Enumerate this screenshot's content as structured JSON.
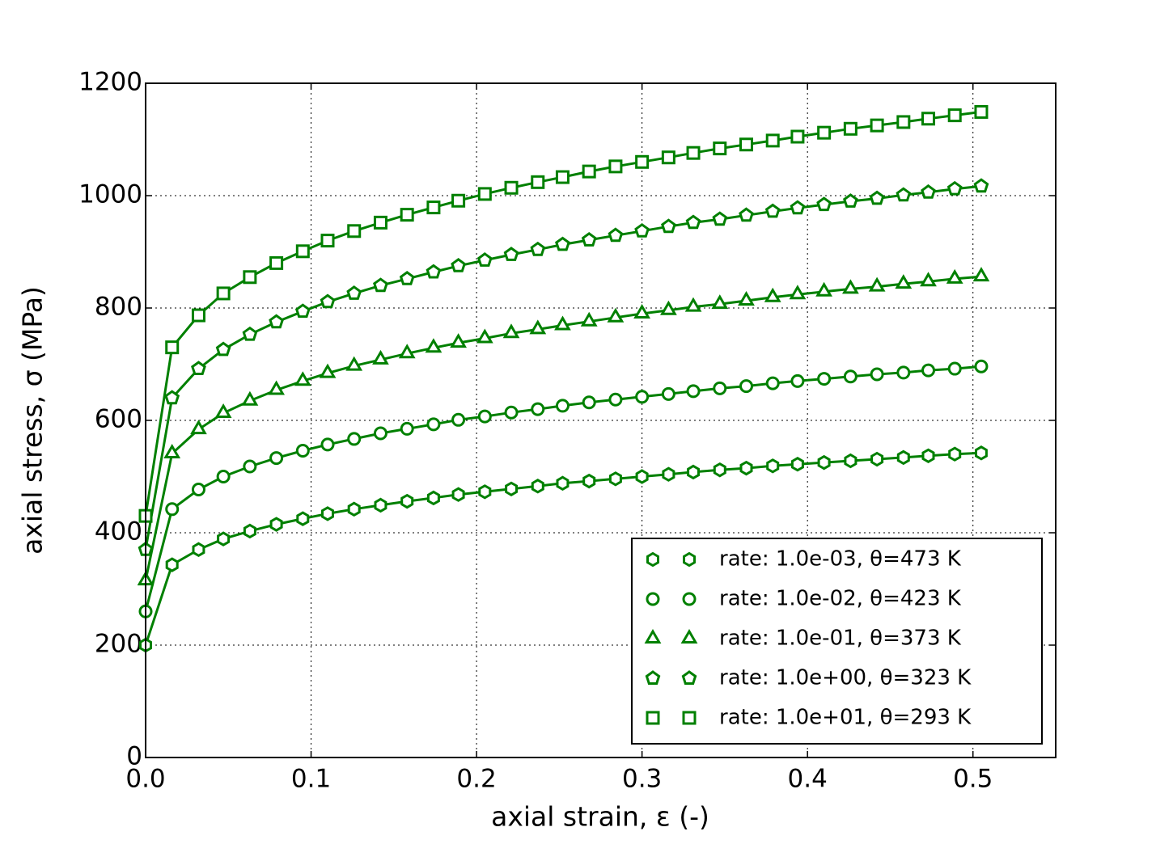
{
  "chart_data": {
    "type": "line",
    "xlabel": "axial strain, ε (-)",
    "ylabel": "axial stress, σ (MPa)",
    "x": [
      0,
      0.016,
      0.032,
      0.047,
      0.063,
      0.079,
      0.095,
      0.11,
      0.126,
      0.142,
      0.158,
      0.174,
      0.189,
      0.205,
      0.221,
      0.237,
      0.252,
      0.268,
      0.284,
      0.3,
      0.316,
      0.331,
      0.347,
      0.363,
      0.379,
      0.394,
      0.41,
      0.426,
      0.442,
      0.458,
      0.473,
      0.489,
      0.505
    ],
    "series": [
      {
        "name": "rate: 1.0e-03, θ=473 K",
        "color": "#008000",
        "marker": "hexagon",
        "values": [
          200,
          343,
          370,
          389,
          403,
          415,
          425,
          434,
          442,
          449,
          456,
          462,
          468,
          473,
          478,
          483,
          488,
          492,
          496,
          500,
          504,
          508,
          512,
          515,
          519,
          522,
          525,
          528,
          531,
          534,
          537,
          540,
          542
        ]
      },
      {
        "name": "rate: 1.0e-02, θ=423 K",
        "color": "#008000",
        "marker": "circle",
        "values": [
          260,
          442,
          477,
          500,
          518,
          533,
          546,
          557,
          567,
          577,
          585,
          593,
          601,
          607,
          614,
          620,
          626,
          632,
          637,
          642,
          647,
          652,
          657,
          661,
          666,
          670,
          674,
          678,
          682,
          685,
          689,
          692,
          696
        ]
      },
      {
        "name": "rate: 1.0e-01, θ=373 K",
        "color": "#008000",
        "marker": "triangle",
        "values": [
          315,
          541,
          584,
          613,
          635,
          654,
          670,
          684,
          697,
          708,
          719,
          729,
          738,
          746,
          755,
          762,
          769,
          776,
          783,
          790,
          796,
          802,
          807,
          813,
          819,
          824,
          829,
          834,
          838,
          843,
          847,
          852,
          856
        ]
      },
      {
        "name": "rate: 1.0e+00, θ=323 K",
        "color": "#008000",
        "marker": "pentagon",
        "values": [
          370,
          640,
          692,
          726,
          753,
          775,
          794,
          811,
          826,
          840,
          852,
          864,
          875,
          885,
          895,
          904,
          913,
          921,
          929,
          937,
          945,
          952,
          958,
          965,
          972,
          978,
          984,
          990,
          995,
          1001,
          1006,
          1012,
          1017
        ]
      },
      {
        "name": "rate: 1.0e+01, θ=293 K",
        "color": "#008000",
        "marker": "square",
        "values": [
          430,
          730,
          787,
          826,
          855,
          880,
          901,
          920,
          937,
          952,
          966,
          979,
          991,
          1003,
          1014,
          1024,
          1033,
          1043,
          1052,
          1060,
          1068,
          1076,
          1084,
          1091,
          1098,
          1105,
          1112,
          1119,
          1125,
          1131,
          1137,
          1143,
          1149
        ]
      }
    ],
    "xlim": [
      0,
      0.55
    ],
    "xticks": [
      {
        "value": 0,
        "label": "0.0"
      },
      0.1,
      0.2,
      0.3,
      0.4,
      0.5
    ],
    "ylim": [
      0,
      1200
    ],
    "yticks": [
      0,
      200,
      400,
      600,
      800,
      1000,
      1200
    ],
    "grid": true,
    "legend": "lower right"
  }
}
